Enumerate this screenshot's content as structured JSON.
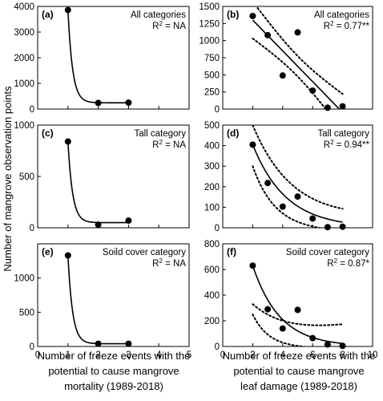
{
  "y_axis_title": "Number of mangrove observation points",
  "x_axis_title_left": [
    "Number of freeze events with the",
    "potential to cause mangrove",
    "mortality (1989-2018)"
  ],
  "x_axis_title_right": [
    "Number of freeze events with the",
    "potential to cause mangrove",
    "leaf damage (1989-2018)"
  ],
  "chart_data": [
    {
      "type": "scatter",
      "panel": "(a)",
      "annotation": "All categories",
      "r2_text": "R",
      "r2_value": " = NA",
      "points": [
        {
          "x": 1,
          "y": 3860
        },
        {
          "x": 2,
          "y": 240
        },
        {
          "x": 3,
          "y": 250
        }
      ],
      "fit": "exponential decay",
      "xlim": [
        0,
        5
      ],
      "ylim": [
        0,
        4000
      ],
      "xticks": [
        0,
        1,
        2,
        3,
        4,
        5
      ],
      "yticks": [
        0,
        1000,
        2000,
        3000,
        4000
      ],
      "xtick_labels_shown": false
    },
    {
      "type": "scatter",
      "panel": "(b)",
      "annotation": "All categories",
      "r2_text": "R",
      "r2_value": " = 0.77**",
      "points": [
        {
          "x": 2,
          "y": 1360
        },
        {
          "x": 3,
          "y": 1080
        },
        {
          "x": 4,
          "y": 490
        },
        {
          "x": 5,
          "y": 1120
        },
        {
          "x": 6,
          "y": 270
        },
        {
          "x": 7,
          "y": 20
        },
        {
          "x": 8,
          "y": 40
        }
      ],
      "fit": "linear with confidence band",
      "xlim": [
        0,
        10
      ],
      "ylim": [
        0,
        1500
      ],
      "xticks": [
        0,
        2,
        4,
        6,
        8,
        10
      ],
      "yticks": [
        0,
        250,
        500,
        750,
        1000,
        1250,
        1500
      ],
      "xtick_labels_shown": false
    },
    {
      "type": "scatter",
      "panel": "(c)",
      "annotation": "Tall category",
      "r2_text": "R",
      "r2_value": " = NA",
      "points": [
        {
          "x": 1,
          "y": 840
        },
        {
          "x": 2,
          "y": 30
        },
        {
          "x": 3,
          "y": 70
        }
      ],
      "fit": "exponential decay",
      "xlim": [
        0,
        5
      ],
      "ylim": [
        0,
        1000
      ],
      "xticks": [
        0,
        1,
        2,
        3,
        4,
        5
      ],
      "yticks": [
        0,
        500,
        1000
      ],
      "xtick_labels_shown": false
    },
    {
      "type": "scatter",
      "panel": "(d)",
      "annotation": "Tall category",
      "r2_text": "R",
      "r2_value": " = 0.94**",
      "points": [
        {
          "x": 2,
          "y": 405
        },
        {
          "x": 3,
          "y": 218
        },
        {
          "x": 4,
          "y": 103
        },
        {
          "x": 5,
          "y": 152
        },
        {
          "x": 6,
          "y": 45
        },
        {
          "x": 7,
          "y": 3
        },
        {
          "x": 8,
          "y": 5
        }
      ],
      "fit": "exponential with confidence band",
      "xlim": [
        0,
        10
      ],
      "ylim": [
        0,
        500
      ],
      "xticks": [
        0,
        2,
        4,
        6,
        8,
        10
      ],
      "yticks": [
        0,
        100,
        200,
        300,
        400,
        500
      ],
      "xtick_labels_shown": false
    },
    {
      "type": "scatter",
      "panel": "(e)",
      "annotation": "Soild cover category",
      "r2_text": "R",
      "r2_value": " = NA",
      "points": [
        {
          "x": 1,
          "y": 1330
        },
        {
          "x": 2,
          "y": 40
        },
        {
          "x": 3,
          "y": 40
        }
      ],
      "fit": "exponential decay",
      "xlim": [
        0,
        5
      ],
      "ylim": [
        0,
        1500
      ],
      "xticks": [
        0,
        1,
        2,
        3,
        4,
        5
      ],
      "yticks": [
        0,
        500,
        1000
      ],
      "xtick_labels_shown": true
    },
    {
      "type": "scatter",
      "panel": "(f)",
      "annotation": "Soild cover category",
      "r2_text": "R",
      "r2_value": " = 0.87*",
      "points": [
        {
          "x": 2,
          "y": 630
        },
        {
          "x": 3,
          "y": 290
        },
        {
          "x": 4,
          "y": 140
        },
        {
          "x": 5,
          "y": 285
        },
        {
          "x": 6,
          "y": 65
        },
        {
          "x": 7,
          "y": 15
        },
        {
          "x": 8,
          "y": 5
        }
      ],
      "fit": "exponential with confidence band",
      "xlim": [
        0,
        10
      ],
      "ylim": [
        0,
        800
      ],
      "xticks": [
        0,
        2,
        4,
        6,
        8,
        10
      ],
      "yticks": [
        0,
        200,
        400,
        600,
        800
      ],
      "xtick_labels_shown": true
    }
  ]
}
